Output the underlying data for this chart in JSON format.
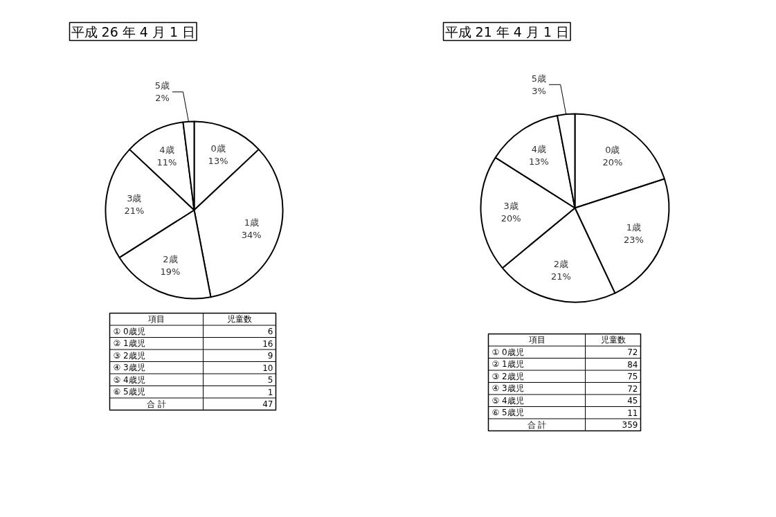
{
  "chart_data": [
    {
      "type": "pie",
      "title": "平成 26 年 4 月 1 日",
      "categories": [
        "0歳",
        "1歳",
        "2歳",
        "3歳",
        "4歳",
        "5歳"
      ],
      "values": [
        13,
        34,
        19,
        21,
        11,
        2
      ],
      "colors": [
        "#ffffff",
        "#ffffff",
        "#ffffff",
        "#ffffff",
        "#ffffff",
        "#ffffff"
      ],
      "value_labels": [
        "13%",
        "34%",
        "19%",
        "21%",
        "11%",
        "2%"
      ],
      "annotations": [
        "項目",
        "児童数",
        "① 0歳児",
        "6",
        "② 1歳児",
        "16",
        "③ 2歳児",
        "9",
        "④ 3歳児",
        "10",
        "⑤ 4歳児",
        "5",
        "⑥ 5歳児",
        "1",
        "合 計",
        "47"
      ]
    },
    {
      "type": "pie",
      "title": "平成 21 年 4 月 1 日",
      "categories": [
        "0歳",
        "1歳",
        "2歳",
        "3歳",
        "4歳",
        "5歳"
      ],
      "values": [
        20,
        23,
        21,
        20,
        13,
        3
      ],
      "colors": [
        "#ffffff",
        "#ffffff",
        "#ffffff",
        "#ffffff",
        "#ffffff",
        "#ffffff"
      ],
      "value_labels": [
        "20%",
        "23%",
        "21%",
        "20%",
        "13%",
        "3%"
      ],
      "annotations": [
        "項目",
        "児童数",
        "① 0歳児",
        "72",
        "② 1歳児",
        "84",
        "③ 2歳児",
        "75",
        "④ 3歳児",
        "72",
        "⑤ 4歳児",
        "45",
        "⑥ 5歳児",
        "11",
        "合 計",
        "359"
      ]
    }
  ]
}
